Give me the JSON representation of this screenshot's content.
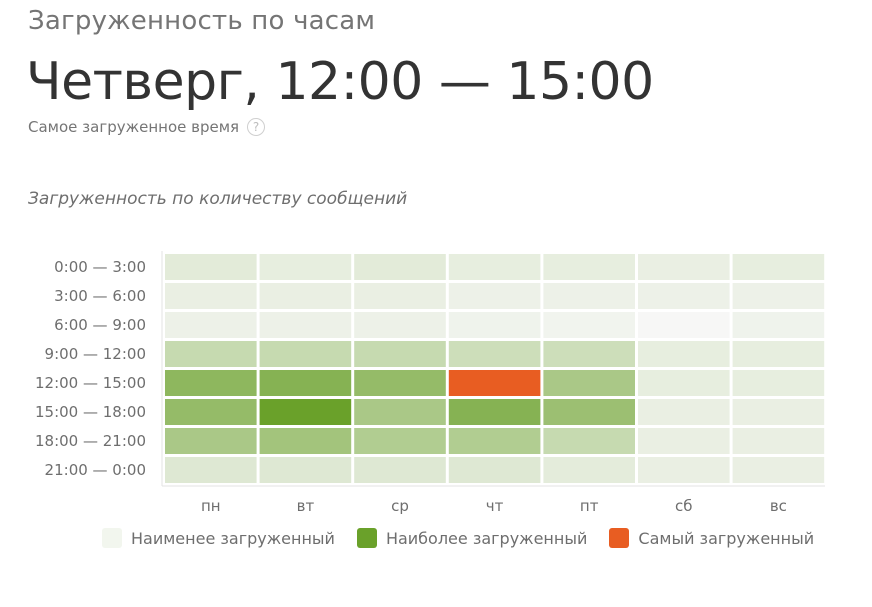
{
  "header": {
    "section_title": "Загруженность по часам",
    "peak_time": "Четверг, 12:00 — 15:00",
    "peak_caption": "Самое загруженное время",
    "help_glyph": "?"
  },
  "chart_subtitle": "Загруженность по количеству сообщений",
  "legend": {
    "items": [
      {
        "label": "Наименее загруженный",
        "color": "#f2f6ee"
      },
      {
        "label": "Наиболее загруженный",
        "color": "#6aa12a"
      },
      {
        "label": "Самый загруженный",
        "color": "#e85d22"
      }
    ]
  },
  "chart_data": {
    "type": "heatmap",
    "x_categories": [
      "пн",
      "вт",
      "ср",
      "чт",
      "пт",
      "сб",
      "вс"
    ],
    "y_categories": [
      "0:00 — 3:00",
      "3:00 — 6:00",
      "6:00 — 9:00",
      "9:00 — 12:00",
      "12:00 — 15:00",
      "15:00 — 18:00",
      "18:00 — 21:00",
      "21:00 — 0:00"
    ],
    "values": [
      [
        0.15,
        0.12,
        0.15,
        0.12,
        0.12,
        0.1,
        0.12
      ],
      [
        0.1,
        0.1,
        0.1,
        0.08,
        0.08,
        0.08,
        0.08
      ],
      [
        0.08,
        0.08,
        0.08,
        0.06,
        0.05,
        0.01,
        0.06
      ],
      [
        0.35,
        0.35,
        0.35,
        0.3,
        0.3,
        0.12,
        0.12
      ],
      [
        0.75,
        0.8,
        0.7,
        1.0,
        0.55,
        0.12,
        0.12
      ],
      [
        0.7,
        1.0,
        0.55,
        0.8,
        0.65,
        0.1,
        0.1
      ],
      [
        0.55,
        0.6,
        0.5,
        0.5,
        0.35,
        0.1,
        0.1
      ],
      [
        0.18,
        0.18,
        0.18,
        0.18,
        0.14,
        0.1,
        0.1
      ]
    ],
    "max_cell": {
      "x": "чт",
      "y": "12:00 — 15:00"
    },
    "colors": {
      "low": "#f2f6ee",
      "high": "#6aa12a",
      "max": "#e85d22",
      "background": "#e9f1e2",
      "grid": "#ffffff"
    }
  }
}
